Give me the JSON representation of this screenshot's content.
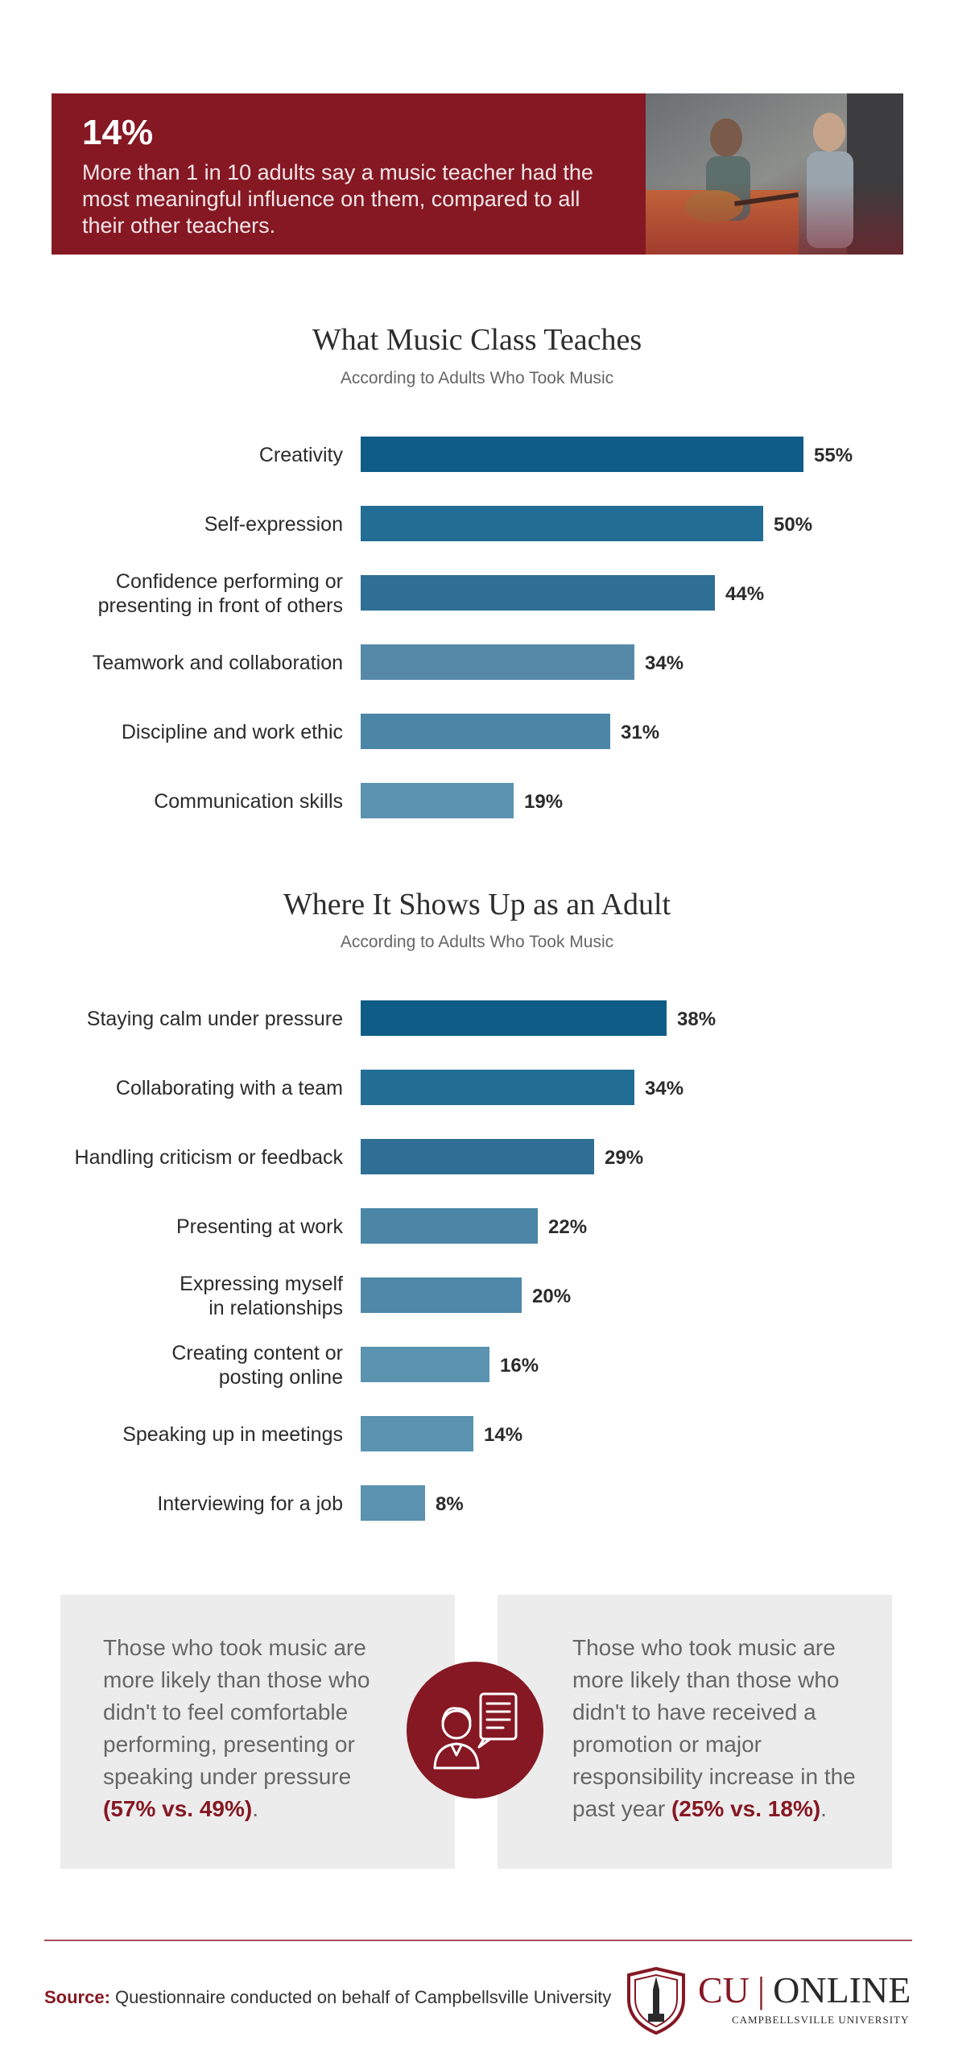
{
  "banner": {
    "stat": "14%",
    "text": "More than 1 in 10 adults say a music teacher had the most meaningful influence on them, compared to all their other teachers."
  },
  "chart_data": [
    {
      "type": "bar",
      "title": "What Music Class Teaches",
      "subtitle": "According to Adults Who Took Music",
      "categories": [
        [
          "Creativity"
        ],
        [
          "Self-expression"
        ],
        [
          "Confidence performing or",
          "presenting in front of others"
        ],
        [
          "Teamwork and collaboration"
        ],
        [
          "Discipline and work ethic"
        ],
        [
          "Communication skills"
        ]
      ],
      "values": [
        55,
        50,
        44,
        34,
        31,
        19
      ],
      "value_labels": [
        "55%",
        "50%",
        "44%",
        "34%",
        "31%",
        "19%"
      ],
      "colors": [
        "#0f5c87",
        "#226d94",
        "#2f6f95",
        "#5689a8",
        "#4b86a6",
        "#5a92b0"
      ],
      "orientation": "horizontal"
    },
    {
      "type": "bar",
      "title": "Where It Shows Up as an Adult",
      "subtitle": "According to Adults Who Took Music",
      "categories": [
        [
          "Staying calm under pressure"
        ],
        [
          "Collaborating with a team"
        ],
        [
          "Handling criticism or feedback"
        ],
        [
          "Presenting at work"
        ],
        [
          "Expressing myself",
          "in relationships"
        ],
        [
          "Creating content or",
          "posting online"
        ],
        [
          "Speaking up in meetings"
        ],
        [
          "Interviewing for a job"
        ]
      ],
      "values": [
        38,
        34,
        29,
        22,
        20,
        16,
        14,
        8
      ],
      "value_labels": [
        "38%",
        "34%",
        "29%",
        "22%",
        "20%",
        "16%",
        "14%",
        "8%"
      ],
      "colors": [
        "#0f5c87",
        "#226d94",
        "#2f6f95",
        "#4b86a6",
        "#4f88a8",
        "#5a92b0",
        "#5a92b0",
        "#5a92b0"
      ],
      "orientation": "horizontal"
    }
  ],
  "cards": {
    "left_text": "Those who took music are more likely than those who didn't to feel comfortable performing, presenting or speaking under pressure",
    "left_stat": "(57% vs. 49%)",
    "right_text": "Those who took music are more likely than those who didn't to have received a promotion or major responsibility increase in the past year",
    "right_stat": "(25% vs. 18%)",
    "period": "."
  },
  "footer": {
    "source_label": "Source:",
    "source_text": "Questionnaire conducted on behalf of Campbellsville University",
    "logo_cu": "CU",
    "logo_separator": "|",
    "logo_online": "ONLINE",
    "logo_sub": "CAMPBELLSVILLE UNIVERSITY"
  },
  "colors": {
    "accent": "#851823",
    "bar_dark": "#0f5c87",
    "bar_light": "#5a92b0"
  }
}
